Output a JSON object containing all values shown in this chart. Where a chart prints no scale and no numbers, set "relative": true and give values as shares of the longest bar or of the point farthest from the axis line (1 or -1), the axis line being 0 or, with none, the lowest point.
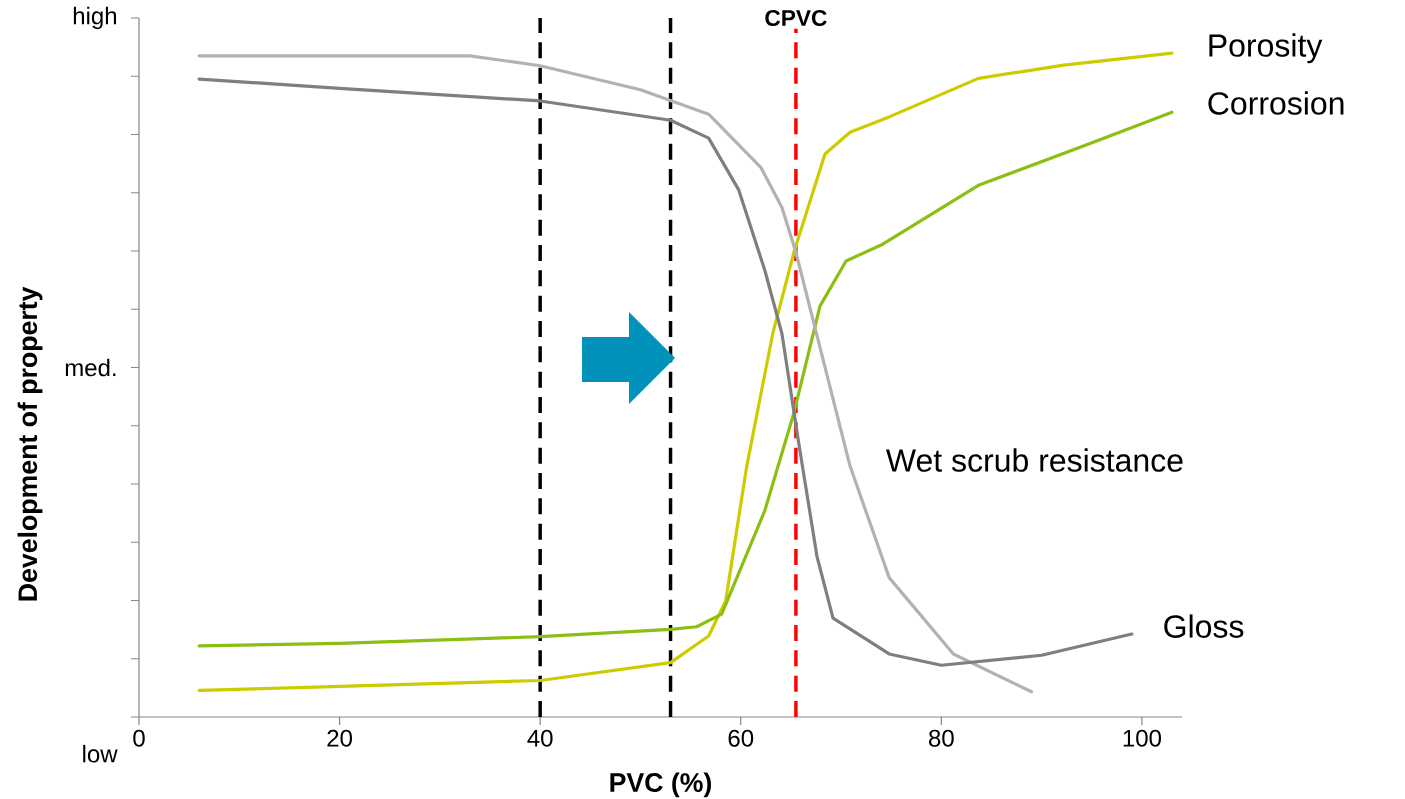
{
  "chart_data": {
    "type": "line",
    "xlabel": "PVC (%)",
    "ylabel": "Development of property",
    "xlim": [
      0,
      104
    ],
    "xticks": [
      0,
      20,
      40,
      60,
      80,
      100
    ],
    "relative": true,
    "annotations": [
      "low",
      "med.",
      "high"
    ],
    "marker": "none",
    "line_style": "solid",
    "series": [
      {
        "name": "Porosity",
        "color": "#cccc00",
        "x": [
          6,
          20,
          40,
          53,
          56.8,
          58.5,
          60.6,
          63.2,
          65.3,
          68.4,
          70.9,
          74.8,
          83.7,
          92.2,
          103
        ],
        "values": [
          0.04,
          0.046,
          0.055,
          0.082,
          0.122,
          0.175,
          0.378,
          0.578,
          0.7,
          0.848,
          0.881,
          0.904,
          0.962,
          0.982,
          1
        ]
      },
      {
        "name": "Corrosion",
        "color": "#8cbf14",
        "x": [
          6,
          20,
          40,
          53,
          55.6,
          58.1,
          62.4,
          65.3,
          67.9,
          70.5,
          74,
          83.7,
          94.3,
          103
        ],
        "values": [
          0.107,
          0.111,
          0.121,
          0.132,
          0.136,
          0.155,
          0.311,
          0.458,
          0.619,
          0.687,
          0.711,
          0.801,
          0.861,
          0.911
        ]
      },
      {
        "name": "Wet scrub resistance",
        "color": "#b2b2b2",
        "x": [
          6,
          20,
          33,
          40,
          50,
          56.8,
          62,
          64.1,
          65.5,
          70.9,
          74.8,
          81.2,
          89
        ],
        "values": [
          0.996,
          0.996,
          0.996,
          0.981,
          0.945,
          0.908,
          0.828,
          0.768,
          0.7,
          0.378,
          0.21,
          0.095,
          0.038
        ]
      },
      {
        "name": "Gloss",
        "color": "#7f7f7f",
        "x": [
          6,
          20,
          40,
          53,
          56.8,
          59.8,
          62.4,
          64.1,
          65.8,
          67.6,
          69.2,
          74.8,
          80,
          90,
          99
        ],
        "values": [
          0.961,
          0.947,
          0.928,
          0.899,
          0.872,
          0.794,
          0.673,
          0.578,
          0.411,
          0.242,
          0.149,
          0.095,
          0.078,
          0.093,
          0.125
        ]
      }
    ],
    "ref_lines": [
      {
        "axis": "x",
        "value": 40,
        "color": "#000000",
        "line_style": "dashed"
      },
      {
        "axis": "x",
        "value": 53,
        "color": "#000000",
        "line_style": "dashed"
      },
      {
        "axis": "x",
        "value": 65.5,
        "label": "CPVC",
        "color": "#ff0000",
        "line_style": "dashed"
      }
    ]
  }
}
